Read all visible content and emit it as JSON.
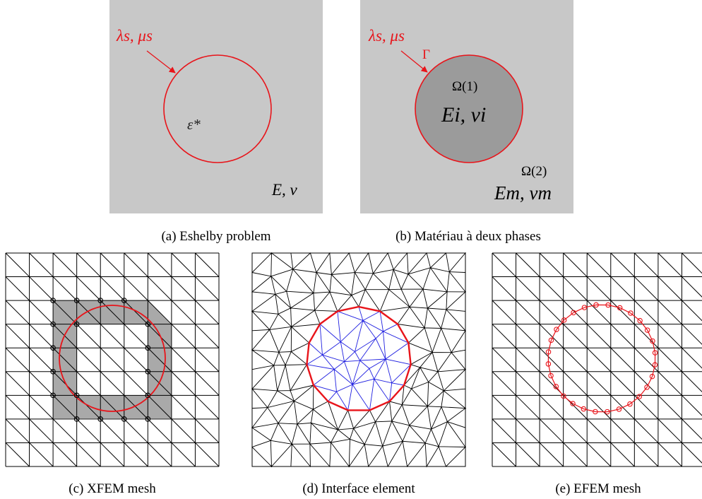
{
  "panels": {
    "a": {
      "caption": "(a) Eshelby problem",
      "surface_label": "λs, μs",
      "inclusion_label": "ε*",
      "matrix_label": "E, ν",
      "colors": {
        "background": "#c8c8c8",
        "interface": "#e8141a"
      }
    },
    "b": {
      "caption": "(b) Matériau à deux phases",
      "surface_label": "λs, μs",
      "interface_label": "Γ",
      "inclusion_domain_label": "Ω(1)",
      "inclusion_props_label": "Ei, νi",
      "matrix_domain_label": "Ω(2)",
      "matrix_props_label": "Em, νm",
      "colors": {
        "background": "#c8c8c8",
        "inclusion": "#9b9b9b",
        "interface": "#e8141a"
      }
    },
    "c": {
      "caption": "(c) XFEM mesh",
      "grid": "9x9 structured triangles",
      "colors": {
        "mesh": "#000000",
        "enriched": "#a9a9a9",
        "interface": "#e8141a"
      }
    },
    "d": {
      "caption": "(d) Interface element",
      "colors": {
        "mesh": "#000000",
        "inclusion_mesh": "#2020e0",
        "interface": "#e8141a"
      }
    },
    "e": {
      "caption": "(e) EFEM mesh",
      "grid": "9x9 structured triangles",
      "colors": {
        "mesh": "#000000",
        "interface": "#e8141a"
      }
    }
  }
}
